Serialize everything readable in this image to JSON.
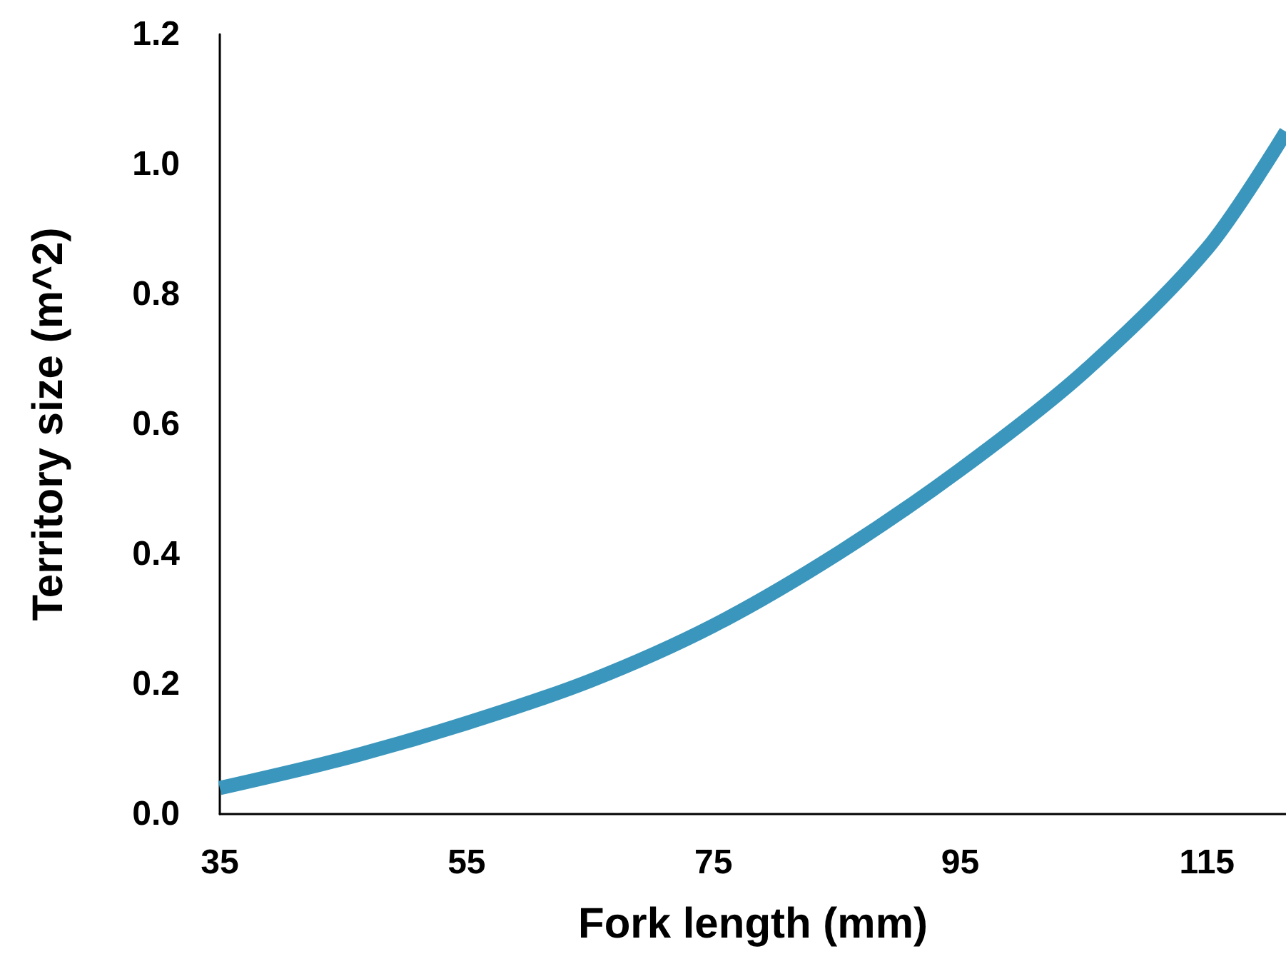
{
  "chart_data": {
    "type": "line",
    "xlabel": "Fork length (mm)",
    "ylabel": "Territory size (m^2)",
    "xlim": [
      35,
      121.4
    ],
    "xticks": [
      35,
      55,
      75,
      95,
      115
    ],
    "ylim": [
      0,
      1.2
    ],
    "yticks": [
      {
        "value": 0,
        "label": "0.0"
      },
      0.2,
      0.4,
      0.6,
      0.8,
      {
        "value": 1,
        "label": "1.0"
      },
      1.2
    ],
    "grid": false,
    "marker": "none",
    "line_style": "solid",
    "series": [
      {
        "color": "#3a96bc",
        "x": [
          35,
          45,
          55,
          65,
          75,
          85,
          95,
          105,
          115,
          121.4
        ],
        "values": [
          0.04,
          0.085,
          0.14,
          0.205,
          0.29,
          0.4,
          0.53,
          0.68,
          0.87,
          1.05
        ]
      }
    ]
  }
}
